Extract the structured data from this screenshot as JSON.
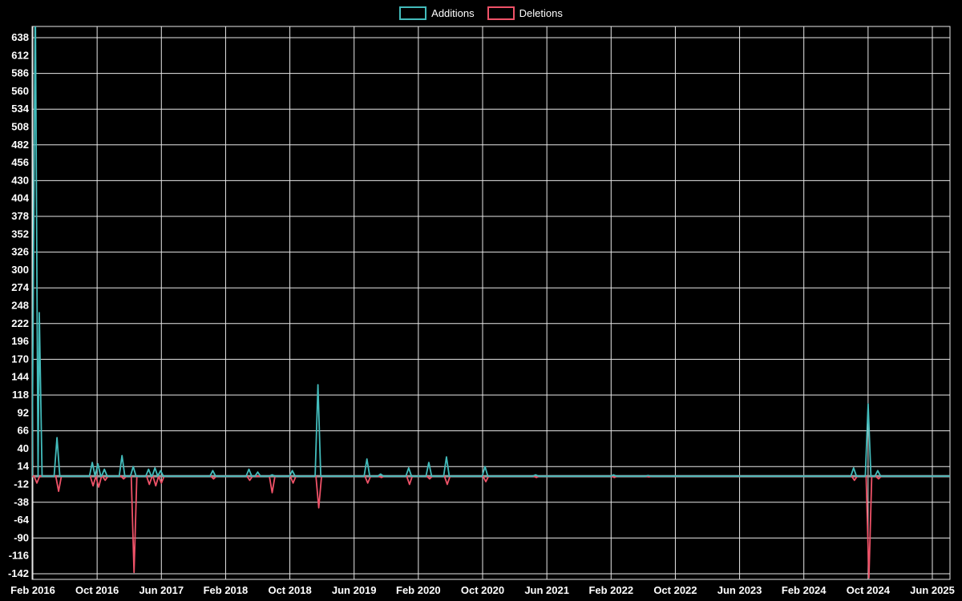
{
  "page": {
    "background": "#000000"
  },
  "chart_data": {
    "type": "line",
    "title": "",
    "legend": {
      "position": "top-center"
    },
    "x_axis": {
      "tick_labels": [
        "Feb 2016",
        "Oct 2016",
        "Jun 2017",
        "Feb 2018",
        "Oct 2018",
        "Jun 2019",
        "Feb 2020",
        "Oct 2020",
        "Jun 2021",
        "Feb 2022",
        "Oct 2022",
        "Jun 2023",
        "Feb 2024",
        "Oct 2024",
        "Jun 2025"
      ],
      "months_per_tick": 8
    },
    "y_axis": {
      "min": -142,
      "max": 638,
      "tick_step": 26,
      "tick_labels": [
        "-142",
        "-116",
        "-90",
        "-64",
        "-38",
        "-12",
        "14",
        "40",
        "66",
        "92",
        "118",
        "144",
        "170",
        "196",
        "222",
        "248",
        "274",
        "300",
        "326",
        "352",
        "378",
        "404",
        "430",
        "456",
        "482",
        "508",
        "534",
        "560",
        "586",
        "612",
        "638"
      ]
    },
    "grid": {
      "horizontal_step": 52,
      "vertical_at_ticks": true,
      "color": "#e8e8e8",
      "zero_line_color": "#9a9a9a"
    },
    "series": [
      {
        "name": "Additions",
        "color": "#43bcbc",
        "events": [
          [
            0.3,
            700
          ],
          [
            0.8,
            238
          ],
          [
            3.0,
            56
          ],
          [
            7.4,
            20
          ],
          [
            8.1,
            18
          ],
          [
            8.9,
            10
          ],
          [
            11.1,
            30
          ],
          [
            12.5,
            14
          ],
          [
            14.4,
            10
          ],
          [
            15.2,
            12
          ],
          [
            15.9,
            8
          ],
          [
            22.4,
            8
          ],
          [
            26.9,
            10
          ],
          [
            28.0,
            6
          ],
          [
            29.8,
            2
          ],
          [
            32.3,
            8
          ],
          [
            35.5,
            133
          ],
          [
            41.6,
            25
          ],
          [
            43.3,
            3
          ],
          [
            46.8,
            12
          ],
          [
            49.3,
            20
          ],
          [
            51.5,
            28
          ],
          [
            56.3,
            14
          ],
          [
            62.6,
            2
          ],
          [
            72.3,
            2
          ],
          [
            76.6,
            1
          ],
          [
            102.2,
            12
          ],
          [
            104.0,
            105
          ],
          [
            105.2,
            8
          ]
        ]
      },
      {
        "name": "Deletions",
        "color": "#ef5268",
        "events": [
          [
            0.5,
            -10
          ],
          [
            3.2,
            -22
          ],
          [
            7.5,
            -14
          ],
          [
            8.2,
            -16
          ],
          [
            9.0,
            -6
          ],
          [
            11.3,
            -4
          ],
          [
            12.6,
            -140
          ],
          [
            14.5,
            -12
          ],
          [
            15.3,
            -14
          ],
          [
            16.0,
            -10
          ],
          [
            22.5,
            -4
          ],
          [
            27.0,
            -6
          ],
          [
            29.8,
            -24
          ],
          [
            32.4,
            -10
          ],
          [
            35.6,
            -46
          ],
          [
            41.7,
            -10
          ],
          [
            43.4,
            -2
          ],
          [
            46.9,
            -12
          ],
          [
            49.4,
            -4
          ],
          [
            51.6,
            -12
          ],
          [
            56.4,
            -8
          ],
          [
            62.7,
            -2
          ],
          [
            72.4,
            -2
          ],
          [
            76.7,
            -1
          ],
          [
            102.3,
            -6
          ],
          [
            104.1,
            -148
          ],
          [
            105.3,
            -4
          ]
        ]
      }
    ]
  }
}
